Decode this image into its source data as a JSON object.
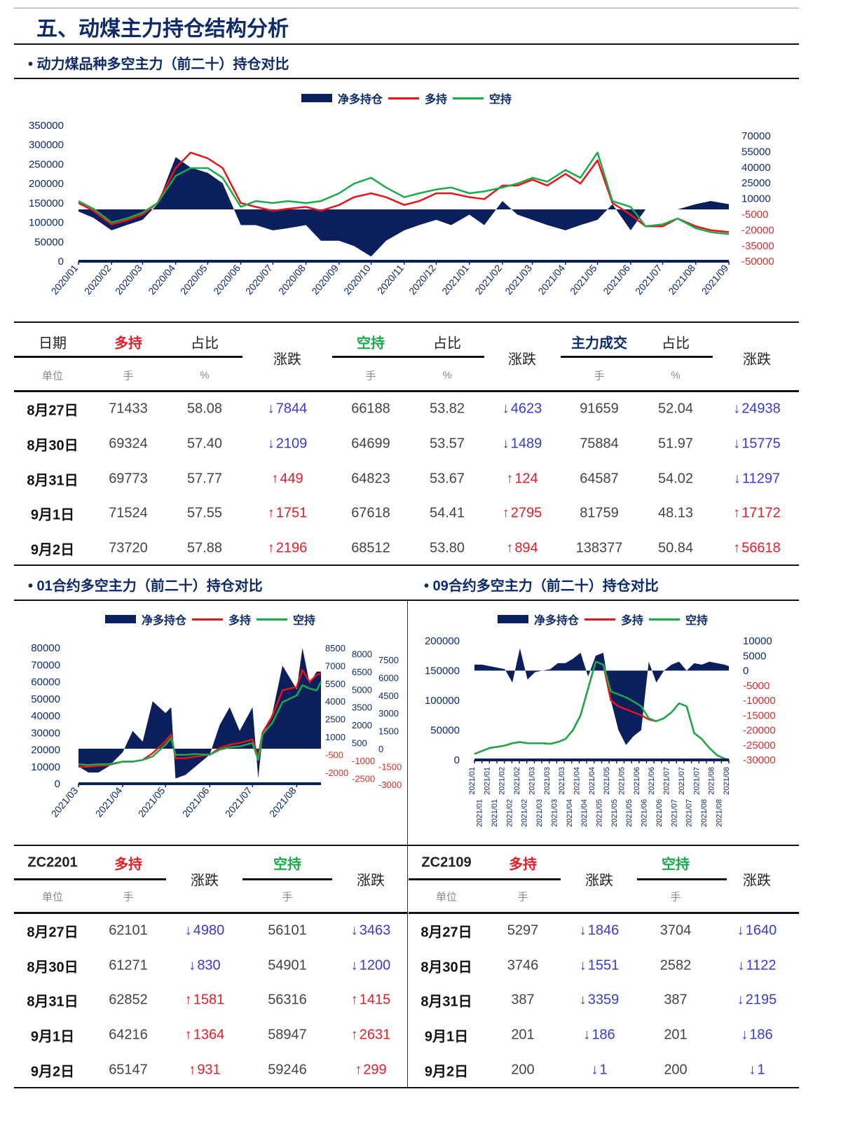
{
  "page_title": "五、动煤主力持仓结构分析",
  "colors": {
    "title": "#0d2a6b",
    "net": "#0b1f5c",
    "long": "#e8141a",
    "short": "#1aaa4a",
    "up": "#e0202a",
    "down": "#3a3acb",
    "volume": "#0d2a6b"
  },
  "section1": {
    "heading": "• 动力煤品种多空主力（前二十）持仓对比"
  },
  "section2": {
    "heading": "• 01合约多空主力（前二十）持仓对比"
  },
  "section3": {
    "heading": "• 09合约多空主力（前二十）持仓对比"
  },
  "legend": {
    "net": "净多持仓",
    "long": "多持",
    "short": "空持"
  },
  "chart_data": [
    {
      "type": "line+area",
      "title": "",
      "x_tick_labels": [
        "2020/01",
        "2020/02",
        "2020/03",
        "2020/04",
        "2020/05",
        "2020/06",
        "2020/07",
        "2020/08",
        "2020/09",
        "2020/10",
        "2020/11",
        "2020/12",
        "2021/01",
        "2021/02",
        "2021/03",
        "2021/04",
        "2021/05",
        "2021/06",
        "2021/07",
        "2021/08",
        "2021/09"
      ],
      "y_left_ticks": [
        "350000",
        "300000",
        "250000",
        "200000",
        "150000",
        "100000",
        "50000",
        "0"
      ],
      "y_right_ticks": [
        "70000",
        "55000",
        "40000",
        "25000",
        "10000",
        "-5000",
        "-20000",
        "-35000",
        "-50000"
      ],
      "ylim_left": [
        0,
        350000
      ],
      "ylim_right": [
        -50000,
        70000
      ],
      "x": [
        "2020-01-01",
        "2020-01-15",
        "2020-02-01",
        "2020-02-15",
        "2020-03-01",
        "2020-03-15",
        "2020-04-01",
        "2020-04-15",
        "2020-05-01",
        "2020-05-15",
        "2020-06-01",
        "2020-06-15",
        "2020-07-01",
        "2020-07-15",
        "2020-08-01",
        "2020-08-15",
        "2020-09-01",
        "2020-09-15",
        "2020-10-01",
        "2020-10-15",
        "2020-11-01",
        "2020-11-15",
        "2020-12-01",
        "2020-12-15",
        "2021-01-01",
        "2021-01-15",
        "2021-02-01",
        "2021-02-15",
        "2021-03-01",
        "2021-03-15",
        "2021-04-01",
        "2021-04-15",
        "2021-05-01",
        "2021-05-15",
        "2021-06-01",
        "2021-06-15",
        "2021-07-01",
        "2021-07-15",
        "2021-08-01",
        "2021-08-15",
        "2021-09-01"
      ],
      "series": [
        {
          "name": "净多持仓",
          "axis": "right",
          "kind": "area",
          "values": [
            -2000,
            -8000,
            -20000,
            -15000,
            -10000,
            5000,
            50000,
            40000,
            35000,
            25000,
            -15000,
            -15000,
            -20000,
            -18000,
            -15000,
            -30000,
            -30000,
            -35000,
            -45000,
            -30000,
            -20000,
            -15000,
            -10000,
            -15000,
            -5000,
            -15000,
            8000,
            -5000,
            -10000,
            -15000,
            -20000,
            -15000,
            -10000,
            5000,
            -20000,
            0,
            0,
            0,
            5000,
            8000,
            5000
          ]
        },
        {
          "name": "多持",
          "axis": "left",
          "kind": "line",
          "values": [
            150000,
            130000,
            95000,
            105000,
            120000,
            150000,
            240000,
            280000,
            265000,
            240000,
            150000,
            140000,
            130000,
            135000,
            140000,
            130000,
            145000,
            165000,
            175000,
            165000,
            145000,
            155000,
            175000,
            175000,
            165000,
            160000,
            195000,
            195000,
            210000,
            195000,
            225000,
            200000,
            260000,
            150000,
            120000,
            90000,
            90000,
            110000,
            90000,
            80000,
            75000
          ]
        },
        {
          "name": "空持",
          "axis": "left",
          "kind": "line",
          "values": [
            155000,
            135000,
            100000,
            110000,
            125000,
            150000,
            220000,
            240000,
            240000,
            215000,
            140000,
            155000,
            150000,
            155000,
            150000,
            155000,
            175000,
            200000,
            215000,
            190000,
            165000,
            175000,
            185000,
            190000,
            175000,
            180000,
            190000,
            200000,
            215000,
            205000,
            235000,
            215000,
            280000,
            155000,
            140000,
            90000,
            95000,
            110000,
            85000,
            75000,
            70000
          ]
        }
      ]
    },
    {
      "type": "line+area",
      "title": "",
      "x_tick_labels": [
        "2021/03",
        "2021/04",
        "2021/05",
        "2021/06",
        "2021/07",
        "2021/08"
      ],
      "y_left_ticks": [
        "80000",
        "70000",
        "60000",
        "50000",
        "40000",
        "30000",
        "20000",
        "10000",
        "0"
      ],
      "y_right_ticks": [
        "8500",
        "8000",
        "7500",
        "7000",
        "6500",
        "6000",
        "5500",
        "5000",
        "4500",
        "4000",
        "3500",
        "3000",
        "2500",
        "2000",
        "1500",
        "1000",
        "500",
        "0",
        "-500",
        "-1000",
        "-1500",
        "-2000",
        "-2500",
        "-3000"
      ],
      "ylim_left": [
        0,
        80000
      ],
      "ylim_right": [
        -3000,
        8500
      ],
      "x": [
        "2021-03-01",
        "2021-03-08",
        "2021-03-15",
        "2021-03-22",
        "2021-04-01",
        "2021-04-08",
        "2021-04-15",
        "2021-04-22",
        "2021-05-01",
        "2021-05-05",
        "2021-05-08",
        "2021-05-15",
        "2021-05-22",
        "2021-06-01",
        "2021-06-08",
        "2021-06-15",
        "2021-06-22",
        "2021-07-01",
        "2021-07-05",
        "2021-07-08",
        "2021-07-15",
        "2021-07-22",
        "2021-08-01",
        "2021-08-05",
        "2021-08-10",
        "2021-08-15",
        "2021-08-18"
      ],
      "series": [
        {
          "name": "净多持仓",
          "axis": "right",
          "kind": "area",
          "values": [
            -1500,
            -2000,
            -2000,
            -1500,
            -300,
            1500,
            600,
            4000,
            3000,
            3500,
            -2500,
            -2200,
            -1500,
            -500,
            2000,
            3500,
            1500,
            3500,
            -2500,
            1000,
            3000,
            7000,
            5000,
            8500,
            5500,
            6500,
            6500
          ]
        },
        {
          "name": "多持",
          "axis": "left",
          "kind": "line",
          "values": [
            10000,
            10000,
            10500,
            11000,
            13000,
            13000,
            14000,
            18000,
            25000,
            29000,
            15000,
            15000,
            16000,
            17000,
            21000,
            23000,
            24000,
            26000,
            16000,
            30000,
            40000,
            55000,
            57000,
            67000,
            60000,
            64000,
            65000
          ]
        },
        {
          "name": "空持",
          "axis": "left",
          "kind": "line",
          "values": [
            11500,
            11000,
            11500,
            11500,
            13000,
            13000,
            14000,
            16000,
            23000,
            27000,
            17000,
            17000,
            17500,
            17000,
            20000,
            21500,
            22000,
            24000,
            14000,
            29000,
            36000,
            48000,
            52000,
            58000,
            56000,
            55000,
            60000
          ]
        }
      ]
    },
    {
      "type": "line+area",
      "title": "",
      "x_tick_labels": [
        "2021/01",
        "2021/01",
        "2021/01",
        "2021/01",
        "2021/02",
        "2021/02",
        "2021/02",
        "2021/02",
        "2021/03",
        "2021/03",
        "2021/03",
        "2021/03",
        "2021/03",
        "2021/04",
        "2021/04",
        "2021/04",
        "2021/04",
        "2021/05",
        "2021/05",
        "2021/05",
        "2021/05",
        "2021/05",
        "2021/06",
        "2021/06",
        "2021/06",
        "2021/06",
        "2021/07",
        "2021/07",
        "2021/07",
        "2021/07",
        "2021/07",
        "2021/08",
        "2021/08",
        "2021/08",
        "2021/08"
      ],
      "y_left_ticks": [
        "200000",
        "150000",
        "100000",
        "50000",
        "0"
      ],
      "y_right_ticks": [
        "10000",
        "5000",
        "0",
        "-5000",
        "-10000",
        "-15000",
        "-20000",
        "-25000",
        "-30000"
      ],
      "ylim_left": [
        0,
        200000
      ],
      "ylim_right": [
        -30000,
        10000
      ],
      "x": [
        "2021-01-04",
        "2021-01-11",
        "2021-01-18",
        "2021-01-25",
        "2021-02-01",
        "2021-02-08",
        "2021-02-15",
        "2021-02-22",
        "2021-03-01",
        "2021-03-08",
        "2021-03-15",
        "2021-03-22",
        "2021-03-29",
        "2021-04-05",
        "2021-04-12",
        "2021-04-19",
        "2021-04-26",
        "2021-05-03",
        "2021-05-10",
        "2021-05-17",
        "2021-05-24",
        "2021-05-31",
        "2021-06-07",
        "2021-06-14",
        "2021-06-21",
        "2021-06-28",
        "2021-07-05",
        "2021-07-12",
        "2021-07-19",
        "2021-07-26",
        "2021-08-02",
        "2021-08-09",
        "2021-08-16",
        "2021-08-23",
        "2021-08-27"
      ],
      "series": [
        {
          "name": "净多持仓",
          "axis": "right",
          "kind": "area",
          "values": [
            2000,
            2000,
            1500,
            1000,
            500,
            -4000,
            7500,
            -3000,
            -500,
            0,
            500,
            2500,
            2500,
            4000,
            6000,
            -2000,
            5000,
            6000,
            -10000,
            -20000,
            -25000,
            -22000,
            -20000,
            3000,
            -4000,
            0,
            2000,
            3000,
            0,
            2500,
            2000,
            3000,
            2500,
            2000,
            1500
          ]
        },
        {
          "name": "多持",
          "axis": "left",
          "kind": "line",
          "values": [
            10000,
            15000,
            20000,
            22000,
            24000,
            28000,
            30000,
            28000,
            28000,
            28000,
            27000,
            30000,
            35000,
            50000,
            75000,
            120000,
            165000,
            160000,
            100000,
            90000,
            85000,
            80000,
            75000,
            68000,
            65000,
            70000,
            80000,
            95000,
            90000,
            45000,
            35000,
            20000,
            8000,
            2000,
            0
          ]
        },
        {
          "name": "空持",
          "axis": "left",
          "kind": "line",
          "values": [
            10000,
            15000,
            20000,
            22000,
            24000,
            28000,
            30000,
            28000,
            28000,
            28000,
            27000,
            30000,
            35000,
            50000,
            75000,
            120000,
            165000,
            160000,
            115000,
            110000,
            105000,
            98000,
            90000,
            70000,
            65000,
            70000,
            80000,
            95000,
            90000,
            45000,
            35000,
            20000,
            8000,
            2000,
            0
          ]
        }
      ]
    }
  ],
  "table_main": {
    "headers": {
      "date": "日期",
      "long": "多持",
      "ratio": "占比",
      "change": "涨跌",
      "short": "空持",
      "volume": "主力成交"
    },
    "units": {
      "date": "单位",
      "lots": "手",
      "pct": "%"
    },
    "rows": [
      {
        "date": "8月27日",
        "long": "71433",
        "long_pct": "58.08",
        "long_chg": {
          "dir": "down",
          "arrow": "↓",
          "value": "7844"
        },
        "short": "66188",
        "short_pct": "53.82",
        "short_chg": {
          "dir": "down",
          "arrow": "↓",
          "value": "4623"
        },
        "vol": "91659",
        "vol_pct": "52.04",
        "vol_chg": {
          "dir": "down",
          "arrow": "↓",
          "value": "24938"
        }
      },
      {
        "date": "8月30日",
        "long": "69324",
        "long_pct": "57.40",
        "long_chg": {
          "dir": "down",
          "arrow": "↓",
          "value": "2109"
        },
        "short": "64699",
        "short_pct": "53.57",
        "short_chg": {
          "dir": "down",
          "arrow": "↓",
          "value": "1489"
        },
        "vol": "75884",
        "vol_pct": "51.97",
        "vol_chg": {
          "dir": "down",
          "arrow": "↓",
          "value": "15775"
        }
      },
      {
        "date": "8月31日",
        "long": "69773",
        "long_pct": "57.77",
        "long_chg": {
          "dir": "up",
          "arrow": "↑",
          "value": "449"
        },
        "short": "64823",
        "short_pct": "53.67",
        "short_chg": {
          "dir": "up",
          "arrow": "↑",
          "value": "124"
        },
        "vol": "64587",
        "vol_pct": "54.02",
        "vol_chg": {
          "dir": "down",
          "arrow": "↓",
          "value": "11297"
        }
      },
      {
        "date": "9月1日",
        "long": "71524",
        "long_pct": "57.55",
        "long_chg": {
          "dir": "up",
          "arrow": "↑",
          "value": "1751"
        },
        "short": "67618",
        "short_pct": "54.41",
        "short_chg": {
          "dir": "up",
          "arrow": "↑",
          "value": "2795"
        },
        "vol": "81759",
        "vol_pct": "48.13",
        "vol_chg": {
          "dir": "up",
          "arrow": "↑",
          "value": "17172"
        }
      },
      {
        "date": "9月2日",
        "long": "73720",
        "long_pct": "57.88",
        "long_chg": {
          "dir": "up",
          "arrow": "↑",
          "value": "2196"
        },
        "short": "68512",
        "short_pct": "53.80",
        "short_chg": {
          "dir": "up",
          "arrow": "↑",
          "value": "894"
        },
        "vol": "138377",
        "vol_pct": "50.84",
        "vol_chg": {
          "dir": "up",
          "arrow": "↑",
          "value": "56618"
        }
      }
    ]
  },
  "table_zc2201": {
    "contract": "ZC2201",
    "long": "多持",
    "change": "涨跌",
    "short": "空持",
    "unit": "单位",
    "lots": "手",
    "rows": [
      {
        "date": "8月27日",
        "long": "62101",
        "long_chg": {
          "dir": "down",
          "arrow": "↓",
          "value": "4980"
        },
        "short": "56101",
        "short_chg": {
          "dir": "down",
          "arrow": "↓",
          "value": "3463"
        }
      },
      {
        "date": "8月30日",
        "long": "61271",
        "long_chg": {
          "dir": "down",
          "arrow": "↓",
          "value": "830"
        },
        "short": "54901",
        "short_chg": {
          "dir": "down",
          "arrow": "↓",
          "value": "1200"
        }
      },
      {
        "date": "8月31日",
        "long": "62852",
        "long_chg": {
          "dir": "up",
          "arrow": "↑",
          "value": "1581"
        },
        "short": "56316",
        "short_chg": {
          "dir": "up",
          "arrow": "↑",
          "value": "1415"
        }
      },
      {
        "date": "9月1日",
        "long": "64216",
        "long_chg": {
          "dir": "up",
          "arrow": "↑",
          "value": "1364"
        },
        "short": "58947",
        "short_chg": {
          "dir": "up",
          "arrow": "↑",
          "value": "2631"
        }
      },
      {
        "date": "9月2日",
        "long": "65147",
        "long_chg": {
          "dir": "up",
          "arrow": "↑",
          "value": "931"
        },
        "short": "59246",
        "short_chg": {
          "dir": "up",
          "arrow": "↑",
          "value": "299"
        }
      }
    ]
  },
  "table_zc2109": {
    "contract": "ZC2109",
    "long": "多持",
    "change": "涨跌",
    "short": "空持",
    "unit": "单位",
    "lots": "手",
    "rows": [
      {
        "date": "8月27日",
        "long": "5297",
        "long_chg": {
          "dir": "down",
          "arrow": "↓",
          "value": "1846"
        },
        "short": "3704",
        "short_chg": {
          "dir": "down",
          "arrow": "↓",
          "value": "1640"
        }
      },
      {
        "date": "8月30日",
        "long": "3746",
        "long_chg": {
          "dir": "down",
          "arrow": "↓",
          "value": "1551"
        },
        "short": "2582",
        "short_chg": {
          "dir": "down",
          "arrow": "↓",
          "value": "1122"
        }
      },
      {
        "date": "8月31日",
        "long": "387",
        "long_chg": {
          "dir": "down",
          "arrow": "↓",
          "value": "3359"
        },
        "short": "387",
        "short_chg": {
          "dir": "down",
          "arrow": "↓",
          "value": "2195"
        }
      },
      {
        "date": "9月1日",
        "long": "201",
        "long_chg": {
          "dir": "down",
          "arrow": "↓",
          "value": "186"
        },
        "short": "201",
        "short_chg": {
          "dir": "down",
          "arrow": "↓",
          "value": "186"
        }
      },
      {
        "date": "9月2日",
        "long": "200",
        "long_chg": {
          "dir": "down",
          "arrow": "↓",
          "value": "1"
        },
        "short": "200",
        "short_chg": {
          "dir": "down",
          "arrow": "↓",
          "value": "1"
        }
      }
    ]
  }
}
